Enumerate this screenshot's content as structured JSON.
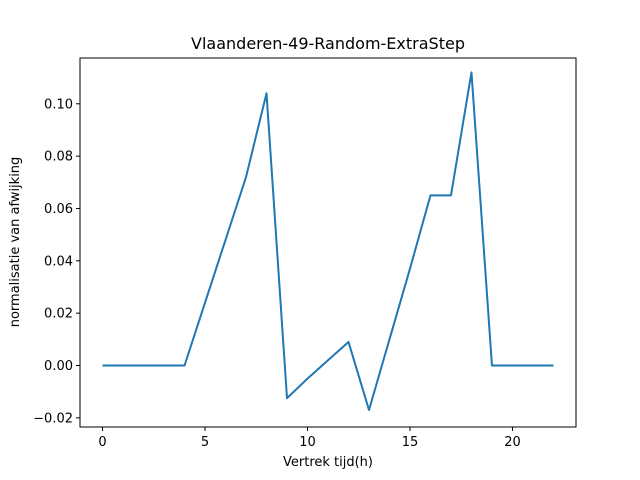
{
  "chart_data": {
    "type": "line",
    "title": "Vlaanderen-49-Random-ExtraStep",
    "xlabel": "Vertrek tijd(h)",
    "ylabel": "normalisatie van afwijking",
    "xlim": [
      -1.1,
      23.1
    ],
    "ylim": [
      -0.0235,
      0.1175
    ],
    "xticks": [
      0,
      5,
      10,
      15,
      20
    ],
    "xtick_labels": [
      "0",
      "5",
      "10",
      "15",
      "20"
    ],
    "yticks": [
      -0.02,
      0.0,
      0.02,
      0.04,
      0.06,
      0.08,
      0.1
    ],
    "ytick_labels": [
      "−0.02",
      "0.00",
      "0.02",
      "0.04",
      "0.06",
      "0.08",
      "0.10"
    ],
    "grid": false,
    "series": [
      {
        "color": "#1f77b4",
        "x": [
          0,
          1,
          2,
          3,
          4,
          5,
          6,
          7,
          8,
          9,
          10,
          11,
          12,
          13,
          14,
          15,
          16,
          17,
          18,
          19,
          20,
          21,
          22
        ],
        "y": [
          0.0,
          0.0,
          0.0,
          0.0,
          0.0,
          0.024,
          0.048,
          0.072,
          0.104,
          -0.0125,
          -0.005,
          0.002,
          0.009,
          -0.017,
          0.01,
          0.037,
          0.065,
          0.065,
          0.112,
          0.0,
          0.0,
          0.0,
          0.0
        ]
      }
    ]
  }
}
